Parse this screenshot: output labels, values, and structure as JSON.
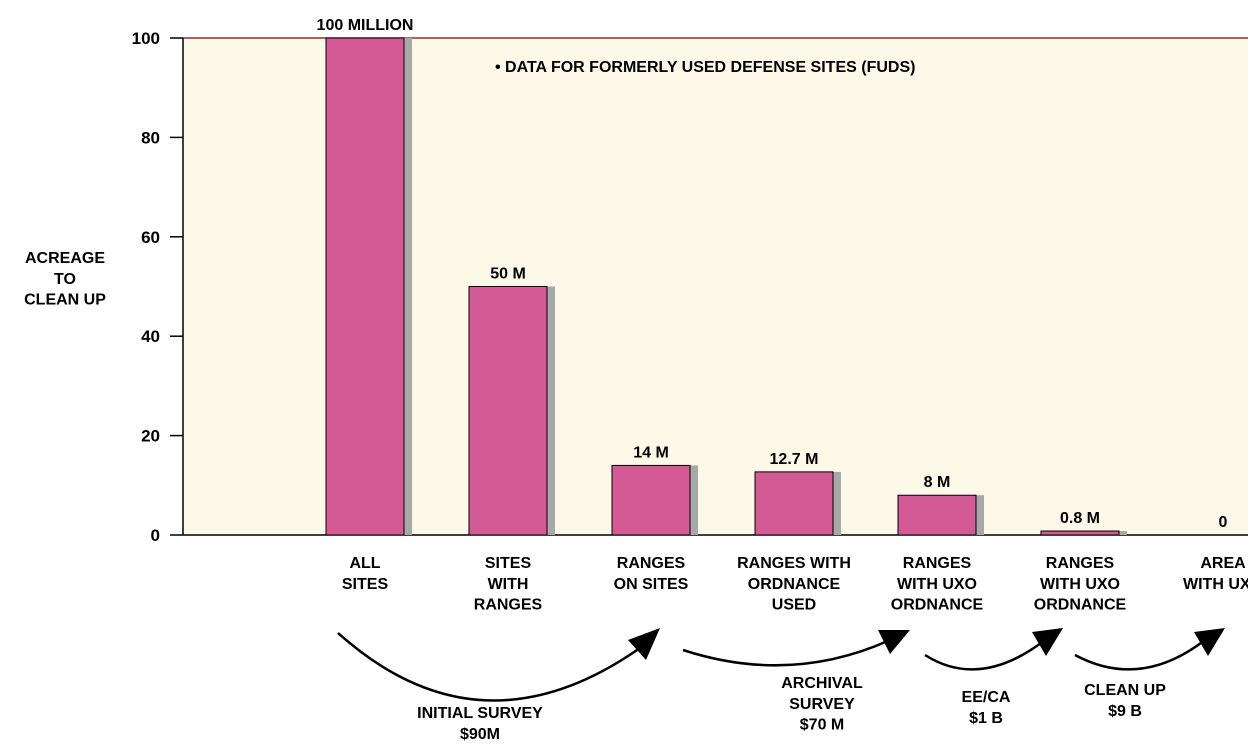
{
  "chart_data": {
    "type": "bar",
    "y_axis_label": "ACREAGE\nTO\nCLEAN UP",
    "annotation": "• DATA FOR FORMERLY USED DEFENSE SITES (FUDS)",
    "categories": [
      "ALL\nSITES",
      "SITES\nWITH\nRANGES",
      "RANGES\nON SITES",
      "RANGES WITH\nORDNANCE\nUSED",
      "RANGES\nWITH UXO\nORDNANCE",
      "RANGES\nWITH UXO\nORDNANCE",
      "AREA\nWITH UXO"
    ],
    "values": [
      100,
      50,
      14,
      12.7,
      8,
      0.8,
      0
    ],
    "value_labels": [
      "100 MILLION",
      "50 M",
      "14 M",
      "12.7 M",
      "8 M",
      "0.8 M",
      "0"
    ],
    "color": "#d45a96",
    "ylim": [
      0,
      100
    ],
    "yticks": [
      0,
      20,
      40,
      60,
      80,
      100
    ],
    "phases": [
      "INITIAL SURVEY\n$90M",
      "ARCHIVAL\nSURVEY\n$70 M",
      "EE/CA\n$1 B",
      "CLEAN UP\n$9 B"
    ]
  }
}
